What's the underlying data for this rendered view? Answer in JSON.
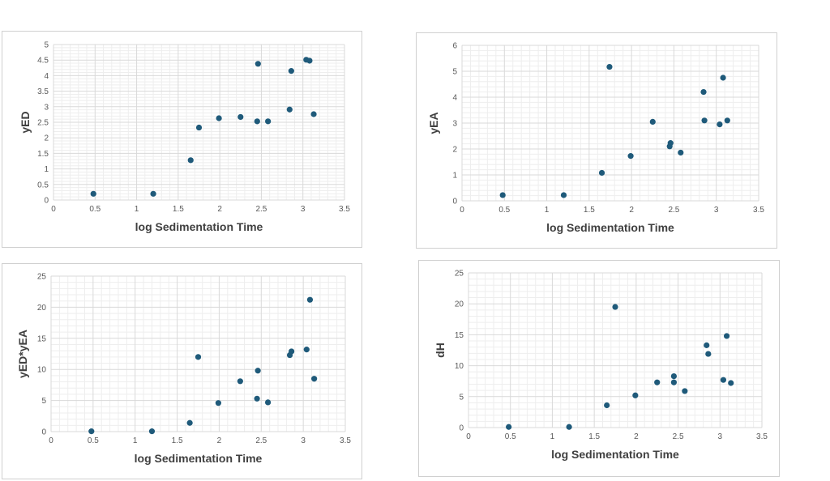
{
  "colors": {
    "marker": "#1f5a7a",
    "major_grid": "#d9d9d9",
    "minor_grid": "#eeeeee",
    "tick_text": "#595959",
    "axis_title": "#404040"
  },
  "chart_data": [
    {
      "type": "scatter",
      "title": "",
      "xlabel": "log Sedimentation Time",
      "ylabel": "yED",
      "xlim": [
        0,
        3.5
      ],
      "ylim": [
        0,
        5
      ],
      "xticks": [
        "0",
        "0.5",
        "1",
        "1.5",
        "2",
        "2.5",
        "3",
        "3.5"
      ],
      "yticks": [
        "0",
        "0.5",
        "1",
        "1.5",
        "2",
        "2.5",
        "3",
        "3.5",
        "4",
        "4.5",
        "5"
      ],
      "grid": true,
      "legend": "none",
      "points": [
        [
          0.48,
          0.2
        ],
        [
          1.2,
          0.2
        ],
        [
          1.65,
          1.28
        ],
        [
          1.75,
          2.33
        ],
        [
          1.99,
          2.63
        ],
        [
          2.25,
          2.67
        ],
        [
          2.45,
          2.53
        ],
        [
          2.46,
          4.38
        ],
        [
          2.58,
          2.53
        ],
        [
          2.84,
          2.91
        ],
        [
          2.86,
          4.15
        ],
        [
          3.04,
          4.51
        ],
        [
          3.08,
          4.48
        ],
        [
          3.13,
          2.76
        ]
      ]
    },
    {
      "type": "scatter",
      "title": "",
      "xlabel": "log Sedimentation Time",
      "ylabel": "yEA",
      "xlim": [
        0,
        3.5
      ],
      "ylim": [
        0,
        6
      ],
      "xticks": [
        "0",
        "0.5",
        "1",
        "1.5",
        "2",
        "2.5",
        "3",
        "3.5"
      ],
      "yticks": [
        "0",
        "1",
        "2",
        "3",
        "4",
        "5",
        "6"
      ],
      "grid": true,
      "legend": "none",
      "points": [
        [
          0.48,
          0.22
        ],
        [
          1.2,
          0.22
        ],
        [
          1.65,
          1.08
        ],
        [
          1.74,
          5.17
        ],
        [
          1.99,
          1.73
        ],
        [
          2.25,
          3.05
        ],
        [
          2.45,
          2.1
        ],
        [
          2.46,
          2.23
        ],
        [
          2.58,
          1.86
        ],
        [
          2.85,
          4.2
        ],
        [
          2.86,
          3.1
        ],
        [
          3.04,
          2.95
        ],
        [
          3.08,
          4.75
        ],
        [
          3.13,
          3.1
        ]
      ]
    },
    {
      "type": "scatter",
      "title": "",
      "xlabel": "log Sedimentation Time",
      "ylabel": "yED*yEA",
      "xlim": [
        0,
        3.5
      ],
      "ylim": [
        0,
        25
      ],
      "xticks": [
        "0",
        "0.5",
        "1",
        "1.5",
        "2",
        "2.5",
        "3",
        "3.5"
      ],
      "yticks": [
        "0",
        "5",
        "10",
        "15",
        "20",
        "25"
      ],
      "grid": true,
      "legend": "none",
      "points": [
        [
          0.48,
          0.05
        ],
        [
          1.2,
          0.05
        ],
        [
          1.65,
          1.4
        ],
        [
          1.75,
          12.0
        ],
        [
          1.99,
          4.6
        ],
        [
          2.25,
          8.1
        ],
        [
          2.45,
          5.3
        ],
        [
          2.46,
          9.8
        ],
        [
          2.58,
          4.7
        ],
        [
          2.84,
          12.3
        ],
        [
          2.86,
          12.9
        ],
        [
          3.04,
          13.2
        ],
        [
          3.08,
          21.2
        ],
        [
          3.13,
          8.5
        ]
      ]
    },
    {
      "type": "scatter",
      "title": "",
      "xlabel": "log Sedimentation Time",
      "ylabel": "dH",
      "xlim": [
        0,
        3.5
      ],
      "ylim": [
        0,
        25
      ],
      "xticks": [
        "0",
        "0.5",
        "1",
        "1.5",
        "2",
        "2.5",
        "3",
        "3.5"
      ],
      "yticks": [
        "0",
        "5",
        "10",
        "15",
        "20",
        "25"
      ],
      "grid": true,
      "legend": "none",
      "points": [
        [
          0.48,
          0.1
        ],
        [
          1.2,
          0.1
        ],
        [
          1.65,
          3.6
        ],
        [
          1.75,
          19.5
        ],
        [
          1.99,
          5.2
        ],
        [
          2.25,
          7.3
        ],
        [
          2.45,
          7.3
        ],
        [
          2.45,
          8.3
        ],
        [
          2.58,
          5.9
        ],
        [
          2.84,
          13.3
        ],
        [
          2.86,
          11.9
        ],
        [
          3.04,
          7.7
        ],
        [
          3.08,
          14.8
        ],
        [
          3.13,
          7.2
        ]
      ]
    }
  ]
}
